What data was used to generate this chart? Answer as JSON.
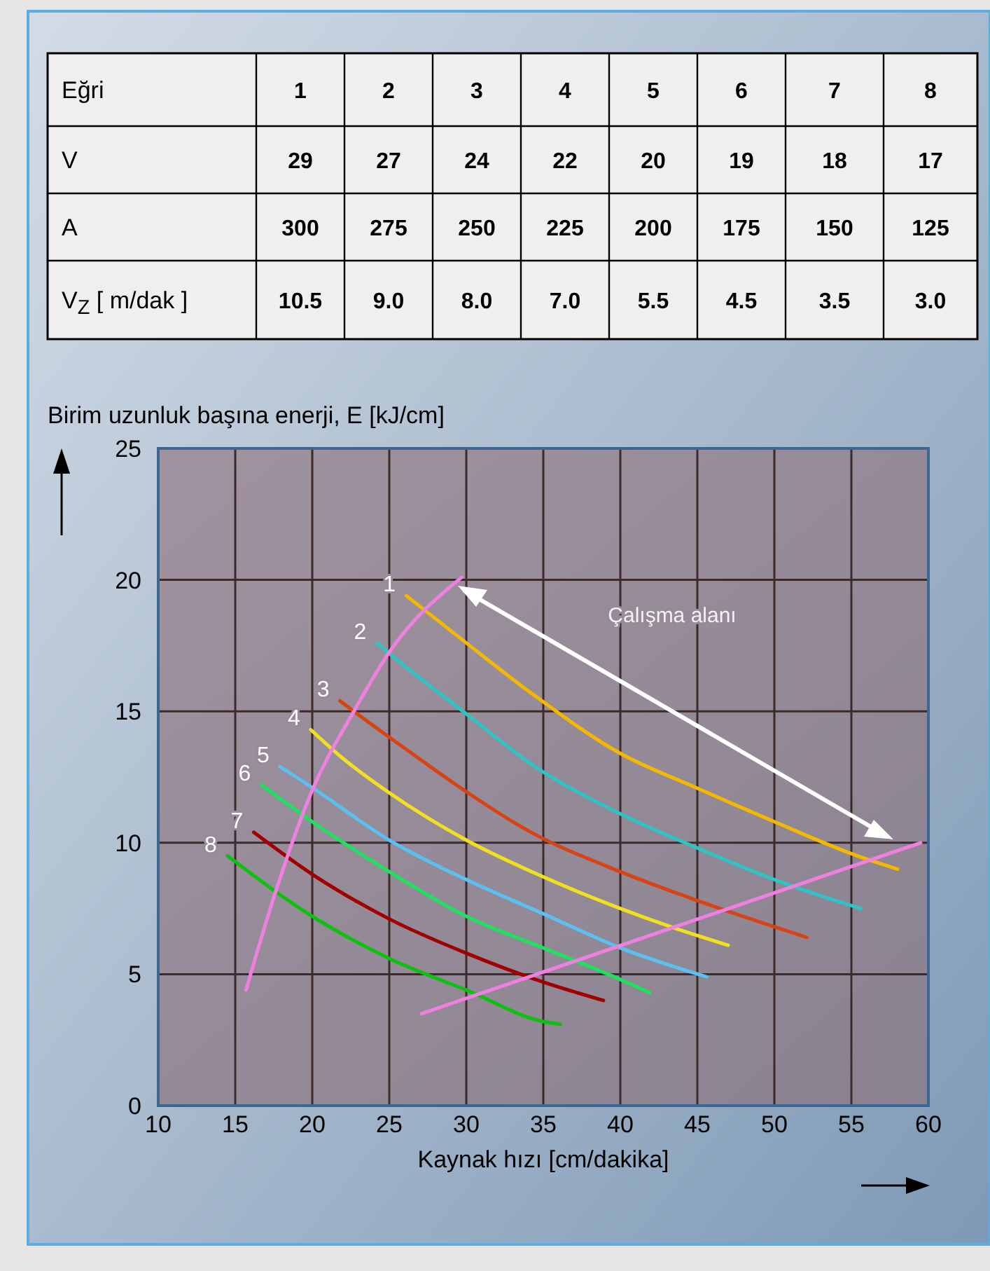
{
  "chart_data": [
    {
      "type": "heatmap",
      "xlabel": "Eğri",
      "categories": [
        "1",
        "2",
        "3",
        "4",
        "5",
        "6",
        "7",
        "8"
      ],
      "y_categories": [
        "V",
        "A",
        "V$_{Z}$ [ m/dak ]"
      ],
      "cells": [
        [
          29,
          27,
          24,
          22,
          20,
          19,
          18,
          17
        ],
        [
          300,
          275,
          250,
          225,
          200,
          175,
          150,
          125
        ],
        [
          10.5,
          9.0,
          8.0,
          7.0,
          5.5,
          4.5,
          3.5,
          3.0
        ]
      ],
      "cell_labels": [
        [
          "29",
          "27",
          "24",
          "22",
          "20",
          "19",
          "18",
          "17"
        ],
        [
          "300",
          "275",
          "250",
          "225",
          "200",
          "175",
          "150",
          "125"
        ],
        [
          "10.5",
          "9.0",
          "8.0",
          "7.0",
          "5.5",
          "4.5",
          "3.5",
          "3.0"
        ]
      ]
    },
    {
      "type": "line",
      "xlabel": "Kaynak hızı [cm/dakika]",
      "ylabel": "Birim uzunluk başına enerji, E [kJ/cm]",
      "xlim": [
        10,
        60
      ],
      "ylim": [
        0,
        25
      ],
      "xticks": [
        10,
        15,
        20,
        25,
        30,
        35,
        40,
        45,
        50,
        55,
        60
      ],
      "yticks": [
        0,
        5,
        10,
        15,
        20,
        25
      ],
      "grid": true,
      "annotations": [
        "Çalışma alanı"
      ],
      "series": [
        {
          "name": "1",
          "color": "#f5b800",
          "x": [
            26.1,
            30,
            34.2,
            40,
            44.9,
            50,
            55.4,
            58
          ],
          "values": [
            19.4,
            17.6,
            15.7,
            13.4,
            12.1,
            10.8,
            9.5,
            9.0
          ]
        },
        {
          "name": "2",
          "color": "#2ec4c4",
          "x": [
            24.2,
            25,
            30,
            34.2,
            40,
            45,
            50,
            55.6
          ],
          "values": [
            17.6,
            17.2,
            14.9,
            13.0,
            11.1,
            9.8,
            8.6,
            7.5
          ]
        },
        {
          "name": "3",
          "color": "#d84315",
          "x": [
            21.8,
            22.7,
            26.7,
            29.1,
            34.2,
            40,
            45,
            52.1
          ],
          "values": [
            15.4,
            15.0,
            13.3,
            12.3,
            10.4,
            8.9,
            7.8,
            6.4
          ]
        },
        {
          "name": "4",
          "color": "#f0e020",
          "x": [
            19.9,
            21.8,
            25,
            30,
            35,
            40,
            43.3,
            47
          ],
          "values": [
            14.3,
            13.3,
            11.9,
            10.1,
            8.7,
            7.5,
            6.8,
            6.1
          ]
        },
        {
          "name": "5",
          "color": "#5bc0f0",
          "x": [
            17.9,
            20,
            25,
            30,
            35,
            40,
            45.6
          ],
          "values": [
            12.9,
            12.1,
            10.1,
            8.6,
            7.3,
            6.0,
            4.9
          ]
        },
        {
          "name": "6",
          "color": "#20e060",
          "x": [
            16.7,
            20,
            25,
            30,
            35,
            40,
            41.9
          ],
          "values": [
            12.2,
            10.8,
            8.9,
            7.2,
            6.0,
            4.8,
            4.3
          ]
        },
        {
          "name": "7",
          "color": "#a00000",
          "x": [
            16.2,
            20,
            25,
            30,
            35,
            38.9
          ],
          "values": [
            10.4,
            8.8,
            7.1,
            5.8,
            4.7,
            4.0
          ]
        },
        {
          "name": "8",
          "color": "#10c010",
          "x": [
            14.5,
            20,
            25,
            30,
            35,
            36.1
          ],
          "values": [
            9.5,
            7.2,
            5.6,
            4.4,
            3.2,
            3.1
          ]
        },
        {
          "color": "#f080e0",
          "x": [
            15.7,
            17.6,
            20,
            22.7,
            25,
            29.7
          ],
          "values": [
            4.4,
            8.1,
            12.0,
            15.0,
            17.25,
            20.1
          ]
        },
        {
          "color": "#f080e0",
          "x": [
            27.1,
            59.5
          ],
          "values": [
            3.5,
            10.0
          ]
        }
      ]
    }
  ]
}
